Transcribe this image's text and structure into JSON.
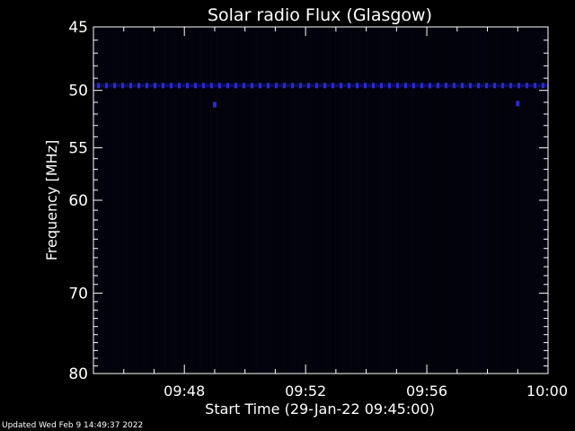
{
  "chart_data": {
    "type": "heatmap",
    "title": "Solar radio Flux (Glasgow)",
    "xlabel": "Start Time (29-Jan-22 09:45:00)",
    "ylabel": "Frequency [MHz]",
    "x_unit": "time (HH:MM, 29-Jan-22)",
    "xlim": [
      "09:45",
      "10:00"
    ],
    "x_ticks": [
      "09:48",
      "09:52",
      "09:56",
      "10:00"
    ],
    "ylim": [
      45,
      80
    ],
    "y_scale": "log",
    "y_ticks": [
      45,
      50,
      55,
      60,
      70,
      80
    ],
    "features": [
      {
        "description": "persistent narrowband emission line",
        "frequency_mhz": 49.6,
        "start": "09:45",
        "end": "10:00"
      },
      {
        "description": "weak spot",
        "frequency_mhz": 51.2,
        "time": "09:49"
      },
      {
        "description": "weak spot",
        "frequency_mhz": 51.1,
        "time": "09:59"
      }
    ],
    "background": "near-black dark blue noise",
    "colors": {
      "background": "#000000",
      "signal": "#1a1a9a",
      "axes": "#ffffff"
    }
  },
  "footer": "Updated Wed Feb  9 14:49:37 2022"
}
